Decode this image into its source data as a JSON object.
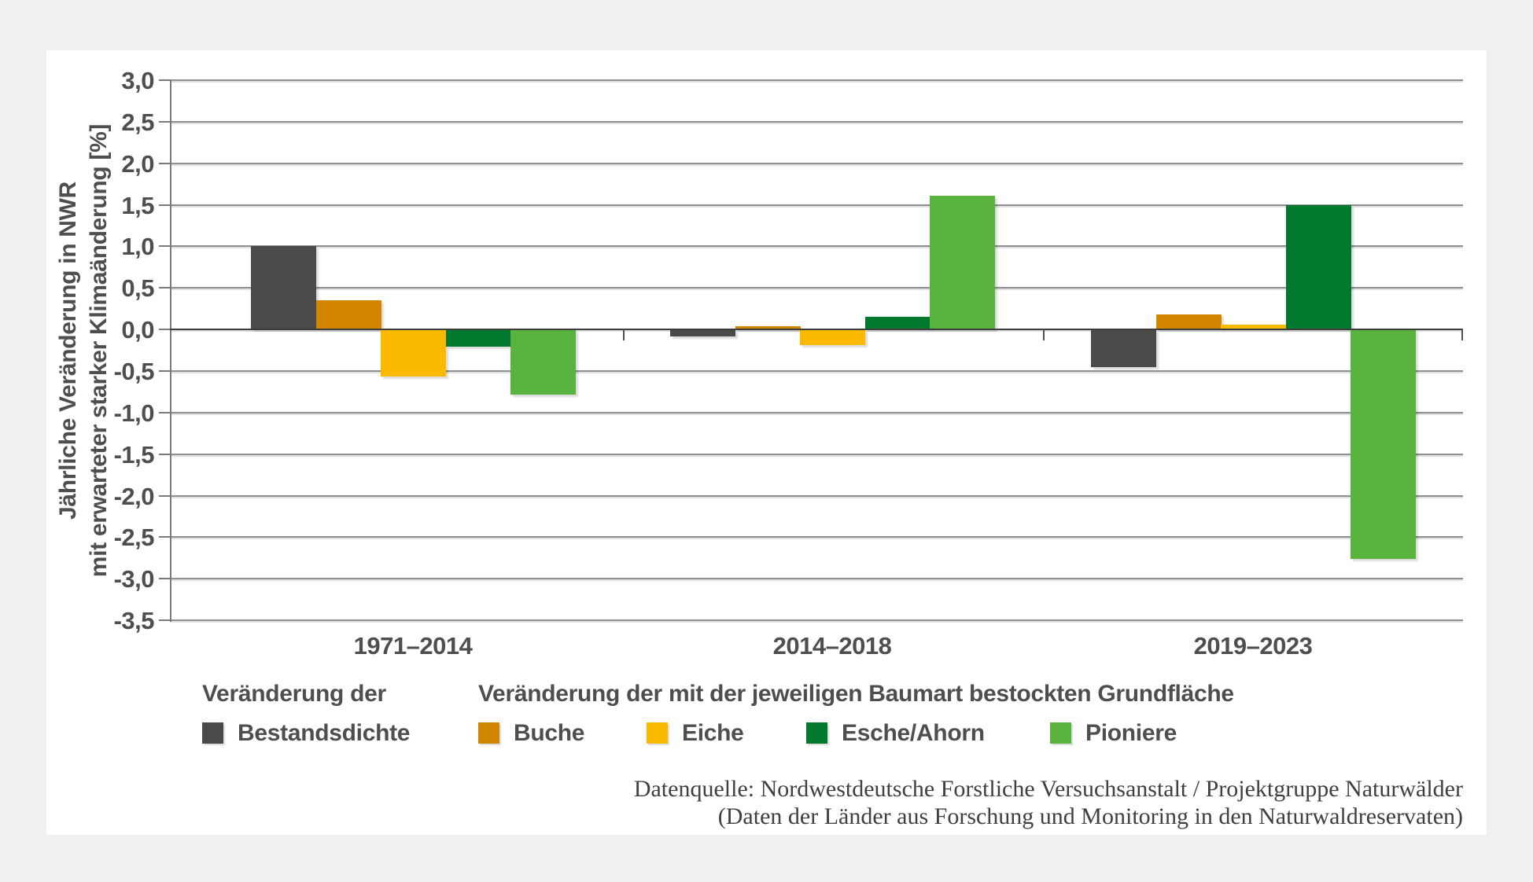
{
  "page": {
    "background_color": "#f0f0ee",
    "panel_color": "#ffffff"
  },
  "chart_data": {
    "type": "bar",
    "title": "",
    "ylabel_lines": [
      "Jährliche Veränderung in NWR",
      "mit erwarteter starker Klimaänderung [%]"
    ],
    "ylim": [
      -3.5,
      3.0
    ],
    "ytick_step": 0.5,
    "ytick_labels": [
      "3,0",
      "2,5",
      "2,0",
      "1,5",
      "1,0",
      "0,5",
      "0,0",
      "-0,5",
      "-1,0",
      "-1,5",
      "-2,0",
      "-2,5",
      "-3,0",
      "-3,5"
    ],
    "grid": true,
    "legend_position": "bottom",
    "categories": [
      "1971–2014",
      "2014–2018",
      "2019–2023"
    ],
    "series": [
      {
        "name": "Bestandsdichte",
        "color": "#4a4a49",
        "values": [
          1.0,
          -0.08,
          -0.45
        ]
      },
      {
        "name": "Buche",
        "color": "#d28600",
        "values": [
          0.35,
          0.04,
          0.18
        ]
      },
      {
        "name": "Eiche",
        "color": "#fbba00",
        "values": [
          -0.57,
          -0.19,
          0.06
        ]
      },
      {
        "name": "Esche/Ahorn",
        "color": "#00782d",
        "values": [
          -0.21,
          0.15,
          1.5
        ]
      },
      {
        "name": "Pioniere",
        "color": "#5ab33e",
        "values": [
          -0.78,
          1.61,
          -2.76
        ]
      }
    ]
  },
  "legend": {
    "group1_header": "Veränderung der",
    "group2_header": "Veränderung der mit der jeweiligen Baumart bestockten Grundfläche"
  },
  "source": {
    "line1": "Datenquelle: Nordwestdeutsche Forstliche Versuchsanstalt / Projektgruppe Naturwälder",
    "line2": "(Daten der Länder aus Forschung und Monitoring in den Naturwaldreservaten)"
  }
}
